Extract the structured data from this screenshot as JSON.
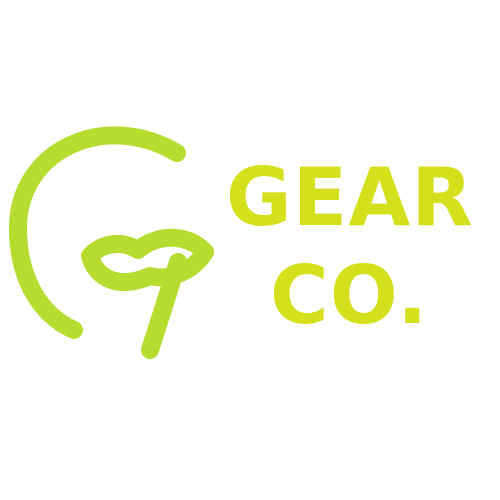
{
  "brand": {
    "line1": "GEAR",
    "line2": "CO.",
    "colors": {
      "mark": "#b5dc2f",
      "text": "#d5e01c",
      "background": "#ffffff"
    },
    "icon": "g-leaf-logo-icon"
  }
}
